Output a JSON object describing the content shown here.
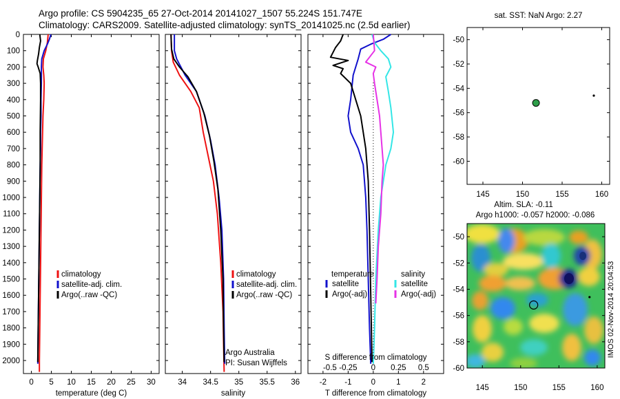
{
  "header": {
    "title_line1": "Argo profile: CS 5904235_65 27-Oct-2014 20141027_1507 55.224S 151.747E",
    "title_line2": "Climatology: CARS2009. Satellite-adjusted climatology: synTS_20141025.nc (2.5d earlier)"
  },
  "colors": {
    "climatology": "#ee1111",
    "satellite": "#1111cc",
    "argo": "#000000",
    "salinity_sat": "#33e6e6",
    "salinity_argo": "#e632e6"
  },
  "chart_data": [
    {
      "type": "line",
      "id": "temperature-profile",
      "xlabel": "temperature (deg C)",
      "ylabel": "",
      "xlim": [
        -2,
        32
      ],
      "ylim": [
        2080,
        0
      ],
      "xticks": [
        0,
        5,
        10,
        15,
        20,
        25,
        30
      ],
      "yticks": [
        0,
        100,
        200,
        300,
        400,
        500,
        600,
        700,
        800,
        900,
        1000,
        1100,
        1200,
        1300,
        1400,
        1500,
        1600,
        1700,
        1800,
        1900,
        2000
      ],
      "legend": [
        "climatology",
        "satellite-adj. clim.",
        "Argo(..raw -QC)"
      ],
      "series": [
        {
          "name": "climatology",
          "color": "climatology",
          "x": [
            4.2,
            4.0,
            3.6,
            3.0,
            2.9,
            3.1,
            3.2,
            3.1,
            2.9,
            2.8,
            2.7,
            2.6,
            2.5,
            2.4,
            2.3,
            2.2,
            2.1,
            2.0,
            2.0
          ],
          "y": [
            0,
            50,
            100,
            150,
            200,
            250,
            300,
            400,
            500,
            600,
            700,
            800,
            1000,
            1200,
            1400,
            1600,
            1800,
            2000,
            2070
          ]
        },
        {
          "name": "satellite-adj. clim.",
          "color": "satellite",
          "x": [
            4.9,
            4.5,
            4.0,
            3.2,
            2.6,
            2.5,
            2.5,
            2.4,
            2.4,
            2.3,
            2.3,
            2.2,
            2.1,
            2.0,
            1.9,
            1.8,
            1.7,
            1.6
          ],
          "y": [
            0,
            30,
            60,
            100,
            150,
            200,
            300,
            400,
            500,
            600,
            700,
            800,
            1000,
            1200,
            1400,
            1600,
            1800,
            2020
          ]
        },
        {
          "name": "Argo(..raw -QC)",
          "color": "argo",
          "x": [
            2.1,
            2.3,
            2.0,
            1.8,
            1.5,
            1.4,
            1.7,
            2.2,
            2.3,
            2.3,
            2.2,
            2.2,
            2.1,
            2.0,
            1.9,
            1.8,
            1.7,
            1.6
          ],
          "y": [
            0,
            40,
            80,
            120,
            160,
            180,
            200,
            240,
            300,
            400,
            600,
            800,
            1000,
            1200,
            1400,
            1600,
            1800,
            2010
          ]
        }
      ]
    },
    {
      "type": "line",
      "id": "salinity-profile",
      "xlabel": "salinity",
      "ylabel": "",
      "xlim": [
        33.7,
        36.1
      ],
      "ylim": [
        2080,
        0
      ],
      "xticks": [
        34,
        34.5,
        35,
        35.5,
        36
      ],
      "xtick_labels": [
        "34",
        "34.5",
        "35",
        "35.5",
        "36"
      ],
      "legend": [
        "climatology",
        "satellite-adj. clim.",
        "Argo(..raw -QC)"
      ],
      "annotations": [
        "Argo Australia",
        "PI: Susan Wijffels"
      ],
      "series": [
        {
          "name": "climatology",
          "color": "climatology",
          "x": [
            33.8,
            33.81,
            33.84,
            33.95,
            34.15,
            34.3,
            34.37,
            34.43,
            34.49,
            34.55,
            34.62,
            34.68,
            34.72,
            34.73,
            34.74
          ],
          "y": [
            0,
            100,
            170,
            250,
            350,
            450,
            600,
            700,
            800,
            900,
            1100,
            1400,
            1700,
            1900,
            2070
          ]
        },
        {
          "name": "satellite-adj. clim.",
          "color": "satellite",
          "x": [
            33.86,
            33.86,
            33.9,
            34.05,
            34.25,
            34.4,
            34.5,
            34.58,
            34.65,
            34.7,
            34.73,
            34.74,
            34.75
          ],
          "y": [
            0,
            100,
            150,
            250,
            350,
            500,
            650,
            800,
            1000,
            1200,
            1500,
            1800,
            2020
          ]
        },
        {
          "name": "Argo(..raw -QC)",
          "color": "argo",
          "x": [
            33.8,
            33.81,
            33.85,
            33.95,
            34.1,
            34.25,
            34.38,
            34.48,
            34.56,
            34.63,
            34.68,
            34.72,
            34.73,
            34.74
          ],
          "y": [
            0,
            90,
            150,
            200,
            260,
            350,
            480,
            620,
            780,
            950,
            1200,
            1500,
            1800,
            2010
          ]
        }
      ]
    },
    {
      "type": "line",
      "id": "difference-profile",
      "xlabel": "T difference from climatology",
      "xlabel_top": "S difference from climatology",
      "xlim": [
        -2.6,
        2.8
      ],
      "ylim": [
        2080,
        0
      ],
      "xticks": [
        -2,
        -1,
        0,
        1,
        2
      ],
      "xtick_labels": [
        "-2",
        "-1",
        "0",
        "1",
        "2"
      ],
      "xticks_top": [
        "-0.5",
        "-0.25",
        "0",
        "0.25",
        "0.5"
      ],
      "legend_title_left": "temperature",
      "legend_title_right": "salinity",
      "legend": [
        "satellite",
        "Argo(-adj)",
        "satellite",
        "Argo(-adj)"
      ],
      "series": [
        {
          "name": "temperature satellite",
          "color": "satellite",
          "x": [
            0.7,
            0.4,
            -0.1,
            -0.5,
            -0.6,
            -0.8,
            -0.9,
            -1.0,
            -0.9,
            -0.6,
            -0.4,
            -0.3,
            -0.25,
            -0.2,
            -0.15,
            -0.1
          ],
          "y": [
            0,
            30,
            60,
            90,
            150,
            250,
            400,
            500,
            600,
            700,
            800,
            1000,
            1200,
            1500,
            1800,
            2020
          ]
        },
        {
          "name": "temperature Argo(-adj)",
          "color": "argo",
          "x": [
            -1.2,
            -1.3,
            -1.5,
            -1.7,
            -1.0,
            -1.6,
            -1.2,
            -1.3,
            -0.9,
            -0.7,
            -0.5,
            -0.4,
            -0.3,
            -0.2,
            -0.15,
            -0.1,
            -0.05
          ],
          "y": [
            0,
            40,
            80,
            140,
            160,
            190,
            210,
            240,
            300,
            400,
            500,
            600,
            700,
            900,
            1200,
            1600,
            2010
          ]
        },
        {
          "name": "salinity satellite",
          "color": "salinity_sat",
          "x": [
            -0.05,
            0.05,
            0.3,
            0.6,
            0.7,
            0.5,
            0.6,
            0.7,
            0.8,
            0.7,
            0.5,
            0.3,
            0.2,
            0.1,
            0.05,
            0.0
          ],
          "y": [
            0,
            50,
            100,
            150,
            200,
            260,
            350,
            450,
            600,
            700,
            800,
            1000,
            1200,
            1500,
            1800,
            2020
          ]
        },
        {
          "name": "salinity Argo(-adj)",
          "color": "salinity_argo",
          "x": [
            0.0,
            0.05,
            -0.3,
            0.1,
            0.0,
            0.05,
            0.15,
            0.25,
            0.3,
            0.35,
            0.4,
            0.35,
            0.3,
            0.2,
            0.15,
            0.1
          ],
          "y": [
            0,
            100,
            170,
            200,
            240,
            300,
            400,
            500,
            600,
            700,
            800,
            900,
            1100,
            1300,
            1500,
            1650
          ]
        }
      ]
    },
    {
      "type": "scatter",
      "id": "sst-map",
      "title": "sat. SST: NaN Argo: 2.27",
      "xlim": [
        143,
        161
      ],
      "ylim": [
        -62,
        -49
      ],
      "xticks": [
        "145",
        "150",
        "155",
        "160"
      ],
      "yticks": [
        "-50",
        "-52",
        "-54",
        "-56",
        "-58",
        "-60"
      ],
      "points": [
        {
          "x": 151.7,
          "y": -55.2,
          "fill": "#2e9e4a"
        },
        {
          "x": 159.0,
          "y": -54.6,
          "fill": "#000000"
        }
      ]
    },
    {
      "type": "heatmap",
      "id": "sla-map",
      "title_line1": "Altim. SLA: -0.11",
      "title_line2": "Argo h1000: -0.057  h2000: -0.086",
      "side_label": "IMOS 02-Nov-2014 20:04:53",
      "xlim": [
        143,
        161
      ],
      "ylim": [
        -60,
        -49
      ],
      "xticks": [
        "145",
        "150",
        "155",
        "160"
      ],
      "yticks": [
        "-50",
        "-52",
        "-54",
        "-56",
        "-58",
        "-60"
      ],
      "points": [
        {
          "x": 151.7,
          "y": -55.2
        },
        {
          "x": 159.0,
          "y": -54.6
        }
      ]
    }
  ]
}
